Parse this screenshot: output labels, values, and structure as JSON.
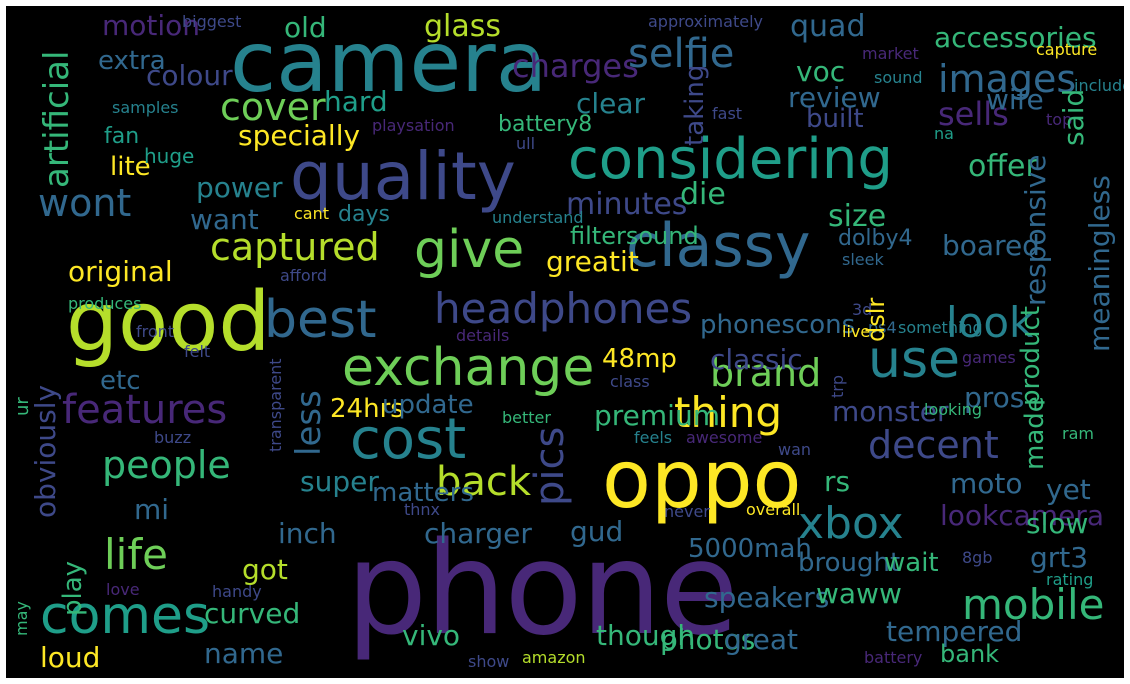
{
  "palette": {
    "background": "#000000",
    "yellow": "#fde725",
    "lime": "#b5de2b",
    "green": "#6ece58",
    "mint": "#35b779",
    "teal": "#1f9e89",
    "cyan": "#26828e",
    "blue": "#31688e",
    "indigo": "#3e4989",
    "violet": "#482878",
    "purple": "#440154"
  },
  "words": [
    "phone",
    "camera",
    "good",
    "oppo",
    "quality",
    "considering",
    "classy",
    "best",
    "exchange",
    "cost",
    "give",
    "use",
    "comes",
    "headphones",
    "features",
    "captured",
    "look",
    "thing",
    "brand",
    "xbox",
    "back",
    "life",
    "selfie",
    "images",
    "cover",
    "wont",
    "decent",
    "people",
    "mobile",
    "glass",
    "old",
    "quad",
    "accessories",
    "motion",
    "charges",
    "colour",
    "voc",
    "clear",
    "hard",
    "sells",
    "wife",
    "review",
    "specially",
    "lite",
    "power",
    "want",
    "minutes",
    "die",
    "offer",
    "size",
    "boared",
    "original",
    "greatit",
    "filtersound",
    "days",
    "dolby4",
    "phonescons",
    "classic",
    "48mp",
    "etc",
    "24hrs",
    "update",
    "premium",
    "monster",
    "pros",
    "mi",
    "super",
    "matters",
    "rs",
    "moto",
    "yet",
    "inch",
    "charger",
    "gud",
    "5000mah",
    "lookcamera",
    "slow",
    "got",
    "brought",
    "wait",
    "grt3",
    "speakers",
    "waww",
    "curved",
    "though",
    "photos",
    "great",
    "tempered",
    "vivo",
    "name",
    "loud",
    "bank",
    "extra",
    "battery8",
    "built",
    "fan",
    "huge",
    "biggest",
    "approximately",
    "capture",
    "market",
    "sound",
    "included",
    "samples",
    "playsation",
    "fast",
    "top",
    "na",
    "ull",
    "cant",
    "understand",
    "produces",
    "afford",
    "details",
    "sleek",
    "live",
    "3d",
    "front",
    "felt",
    "ps4",
    "something",
    "games",
    "class",
    "looking",
    "better",
    "buzz",
    "feels",
    "awesome",
    "wan",
    "ram",
    "thnx",
    "never",
    "overall",
    "8gb",
    "love",
    "handy",
    "rating",
    "show",
    "amazon",
    "battery",
    "pics",
    "artificial",
    "less",
    "said",
    "taking",
    "responsive",
    "meaningless",
    "product",
    "dslr",
    "made",
    "obviously",
    "play",
    "ur",
    "trp",
    "transparent",
    "may"
  ]
}
